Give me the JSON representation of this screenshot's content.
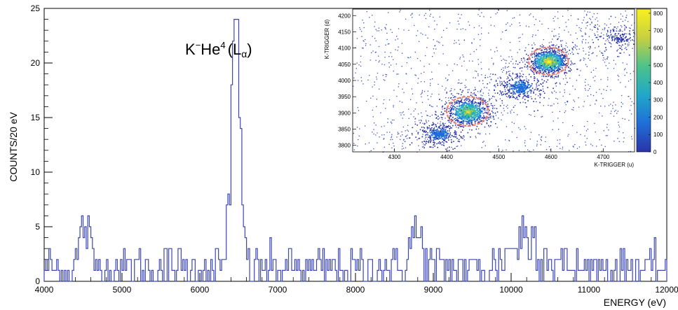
{
  "chart_data": [
    {
      "type": "histogram",
      "xlabel": "ENERGY (eV)",
      "ylabel": "COUNTS/20 eV",
      "xlim": [
        4000,
        12000
      ],
      "ylim": [
        0,
        25
      ],
      "bin_width": 20,
      "x_ticks": [
        4000,
        5000,
        6000,
        7000,
        8000,
        9000,
        10000,
        11000,
        12000
      ],
      "y_ticks": [
        0,
        5,
        10,
        15,
        20,
        25
      ],
      "annotation": {
        "base": "K",
        "sup1": "−",
        "mid": "He",
        "sup2": "4",
        "paren": "(L",
        "sub": "α",
        "close": ")"
      },
      "line_color": "#3c46b4",
      "grid": false,
      "peaks": [
        {
          "center": 6460,
          "height": 20,
          "width": 60
        },
        {
          "center": 4520,
          "height": 4,
          "width": 60
        },
        {
          "center": 8780,
          "height": 3,
          "width": 80
        },
        {
          "center": 10200,
          "height": 3,
          "width": 200
        }
      ],
      "background_level": 1.2
    },
    {
      "type": "heatmap",
      "xlabel": "K-TRIGGER (u)",
      "ylabel": "K-TRIGGER (d)",
      "xlim": [
        4220,
        4760
      ],
      "ylim": [
        3780,
        4220
      ],
      "x_ticks": [
        4300,
        4400,
        4500,
        4600,
        4700
      ],
      "y_ticks": [
        3800,
        3850,
        3900,
        3950,
        4000,
        4050,
        4100,
        4150,
        4200
      ],
      "colorbar_ticks": [
        0,
        100,
        200,
        300,
        400,
        500,
        600,
        700,
        800
      ],
      "clusters": [
        {
          "x": 4440,
          "y": 3905,
          "spread": 22,
          "weight": 700
        },
        {
          "x": 4595,
          "y": 4060,
          "spread": 20,
          "weight": 800
        },
        {
          "x": 4540,
          "y": 3980,
          "spread": 25,
          "weight": 250
        },
        {
          "x": 4385,
          "y": 3835,
          "spread": 22,
          "weight": 250
        },
        {
          "x": 4730,
          "y": 4130,
          "spread": 30,
          "weight": 80
        }
      ],
      "selection_circles": [
        {
          "x": 4440,
          "y": 3905,
          "rx": 40,
          "ry": 45
        },
        {
          "x": 4595,
          "y": 4060,
          "rx": 38,
          "ry": 42
        }
      ],
      "circle_color": "#f08070"
    }
  ]
}
